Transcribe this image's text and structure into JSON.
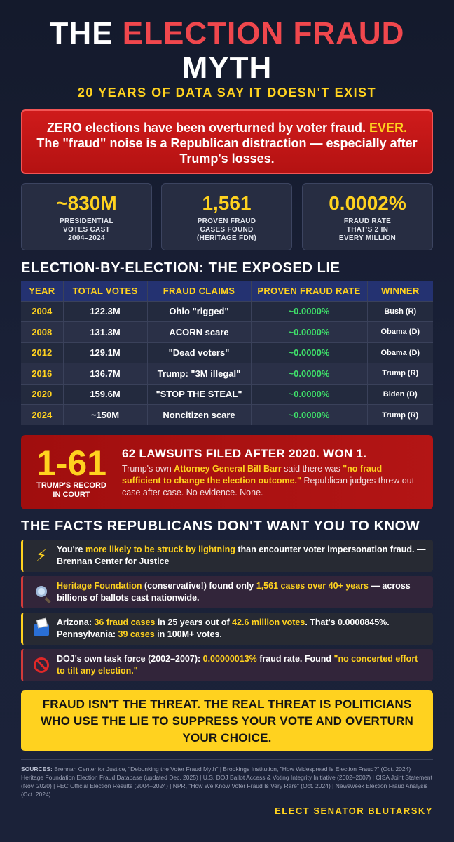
{
  "title": {
    "word_the": "THE",
    "word_highlight": "ELECTION FRAUD",
    "word_myth": "MYTH",
    "subtitle": "20 YEARS OF DATA SAY IT DOESN'T EXIST"
  },
  "alert": {
    "line1_main": "ZERO elections have been overturned by voter fraud.",
    "line1_emph": "EVER.",
    "line2": "The \"fraud\" noise is a Republican distraction — especially after Trump's losses."
  },
  "stats": [
    {
      "value": "~830M",
      "label1": "PRESIDENTIAL",
      "label2": "VOTES CAST",
      "label3": "2004–2024"
    },
    {
      "value": "1,561",
      "label1": "PROVEN FRAUD",
      "label2": "CASES FOUND",
      "label3": "(HERITAGE FDN)"
    },
    {
      "value": "0.0002%",
      "label1": "FRAUD RATE",
      "label2": "THAT'S 2 IN",
      "label3": "EVERY MILLION"
    }
  ],
  "table_heading": "ELECTION-BY-ELECTION: THE EXPOSED LIE",
  "table": {
    "headers": [
      "YEAR",
      "TOTAL VOTES",
      "FRAUD CLAIMS",
      "PROVEN FRAUD RATE",
      "WINNER"
    ],
    "rows": [
      {
        "year": "2004",
        "votes": "122.3M",
        "claim": "Ohio \"rigged\"",
        "rate": "~0.0000%",
        "winner": "Bush (R)"
      },
      {
        "year": "2008",
        "votes": "131.3M",
        "claim": "ACORN scare",
        "rate": "~0.0000%",
        "winner": "Obama (D)"
      },
      {
        "year": "2012",
        "votes": "129.1M",
        "claim": "\"Dead voters\"",
        "rate": "~0.0000%",
        "winner": "Obama (D)"
      },
      {
        "year": "2016",
        "votes": "136.7M",
        "claim": "Trump: \"3M illegal\"",
        "rate": "~0.0000%",
        "winner": "Trump (R)"
      },
      {
        "year": "2020",
        "votes": "159.6M",
        "claim": "\"STOP THE STEAL\"",
        "rate": "~0.0000%",
        "winner": "Biden (D)"
      },
      {
        "year": "2024",
        "votes": "~150M",
        "claim": "Noncitizen scare",
        "rate": "~0.0000%",
        "winner": "Trump (R)"
      }
    ]
  },
  "court": {
    "record": "1-61",
    "record_label1": "TRUMP'S RECORD",
    "record_label2": "IN COURT",
    "headline": "62 LAWSUITS FILED AFTER 2020. WON 1.",
    "body_a": "Trump's own ",
    "body_b": "Attorney General Bill Barr",
    "body_c": " said there was ",
    "body_d": "\"no fraud sufficient to change the election outcome.\"",
    "body_e": " Republican judges threw out case after case. No evidence. None."
  },
  "facts_heading": "THE FACTS REPUBLICANS DON'T WANT YOU TO KNOW",
  "facts": [
    {
      "icon": "lightning-icon",
      "a": "You're ",
      "b": "more likely to be struck by lightning",
      "c": " than encounter voter impersonation fraud. — Brennan Center for Justice"
    },
    {
      "icon": "magnifying-glass-icon",
      "a": "Heritage Foundation",
      "b": " (conservative!) found only ",
      "c": "1,561 cases over 40+ years",
      "d": " — across billions of ballots cast nationwide."
    },
    {
      "icon": "ballot-box-icon",
      "a": "Arizona: ",
      "b": "36 fraud cases",
      "c": " in 25 years out of ",
      "d": "42.6 million votes",
      "e": ". That's 0.0000845%. Pennsylvania: ",
      "f": "39 cases",
      "g": " in 100M+ votes."
    },
    {
      "icon": "prohibited-icon",
      "a": "DOJ's own task force (2002–2007): ",
      "b": "0.00000013%",
      "c": " fraud rate. Found ",
      "d": "\"no concerted effort to tilt any election.\""
    }
  ],
  "banner": "FRAUD ISN'T THE THREAT. THE REAL THREAT IS POLITICIANS WHO USE THE LIE TO SUPPRESS YOUR VOTE AND OVERTURN YOUR CHOICE.",
  "sources": {
    "label": "SOURCES:",
    "text": "Brennan Center for Justice, \"Debunking the Voter Fraud Myth\" | Brookings Institution, \"How Widespread Is Election Fraud?\" (Oct. 2024) | Heritage Foundation Election Fraud Database (updated Dec. 2025) | U.S. DOJ Ballot Access & Voting Integrity Initiative (2002–2007) | CISA Joint Statement (Nov. 2020) | FEC Official Election Results (2004–2024) | NPR, \"How We Know Voter Fraud Is Very Rare\" (Oct. 2024) | Newsweek Election Fraud Analysis (Oct. 2024)"
  },
  "signature": "ELECT SENATOR BLUTARSKY",
  "colors": {
    "accent_yellow": "#ffd21f",
    "accent_red": "#f0474d",
    "rate_green": "#3fe06a",
    "background": "#1a2138"
  }
}
